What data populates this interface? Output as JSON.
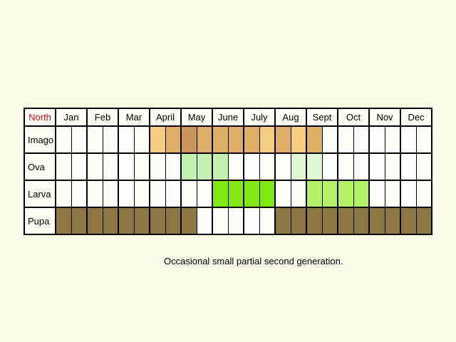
{
  "corner_label": "North",
  "months": [
    "Jan",
    "Feb",
    "Mar",
    "April",
    "May",
    "June",
    "July",
    "Aug",
    "Sept",
    "Oct",
    "Nov",
    "Dec"
  ],
  "colors": {
    "empty": "#fffffa",
    "imago_light": "#f5cd80",
    "imago_mid": "#dfae66",
    "imago_dark": "#c9955a",
    "imago_pale": "#f3d9a2",
    "ova": "#c4f0b2",
    "ova_pale": "#dff7d3",
    "larva_bright": "#80e812",
    "larva_light": "#b4f066",
    "pupa": "#8c7643"
  },
  "rows": [
    {
      "label": "Imago",
      "cells": [
        "empty",
        "empty",
        "empty",
        "empty",
        "empty",
        "empty",
        "imago_light",
        "imago_mid",
        "imago_dark",
        "imago_mid",
        "imago_mid",
        "imago_mid",
        "imago_mid",
        "imago_light",
        "imago_mid",
        "imago_light",
        "imago_mid",
        "empty",
        "empty",
        "empty",
        "empty",
        "empty",
        "empty",
        "empty"
      ]
    },
    {
      "label": "Ova",
      "cells": [
        "empty",
        "empty",
        "empty",
        "empty",
        "empty",
        "empty",
        "empty",
        "empty",
        "ova",
        "ova",
        "ova",
        "empty",
        "empty",
        "empty",
        "empty",
        "ova_pale",
        "ova_pale",
        "empty",
        "empty",
        "empty",
        "empty",
        "empty",
        "empty",
        "empty"
      ]
    },
    {
      "label": "Larva",
      "cells": [
        "empty",
        "empty",
        "empty",
        "empty",
        "empty",
        "empty",
        "empty",
        "empty",
        "empty",
        "empty",
        "larva_bright",
        "larva_bright",
        "larva_bright",
        "larva_bright",
        "empty",
        "empty",
        "larva_light",
        "larva_light",
        "larva_light",
        "larva_light",
        "empty",
        "empty",
        "empty",
        "empty"
      ]
    },
    {
      "label": "Pupa",
      "cells": [
        "pupa",
        "pupa",
        "pupa",
        "pupa",
        "pupa",
        "pupa",
        "pupa",
        "pupa",
        "pupa",
        "empty",
        "empty",
        "empty",
        "empty",
        "empty",
        "pupa",
        "pupa",
        "pupa",
        "pupa",
        "pupa",
        "pupa",
        "pupa",
        "pupa",
        "pupa",
        "pupa"
      ]
    }
  ],
  "note": "Occasional small partial second generation."
}
